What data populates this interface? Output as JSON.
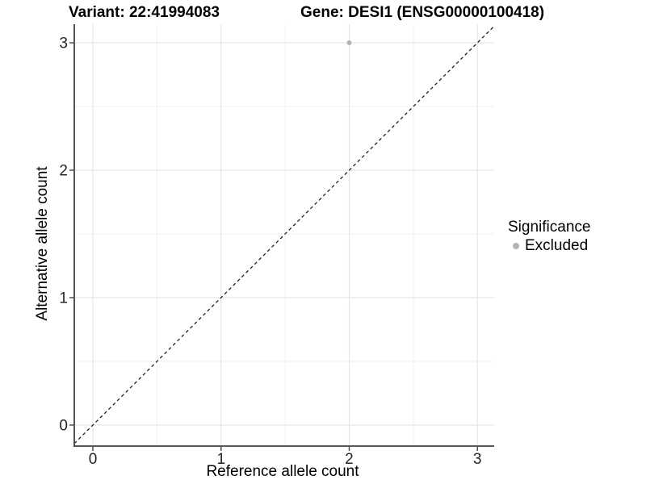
{
  "chart_data": {
    "type": "scatter",
    "title_left": "Variant: 22:41994083",
    "title_right": "Gene: DESI1 (ENSG00000100418)",
    "xlabel": "Reference allele count",
    "ylabel": "Alternative allele count",
    "xlim": [
      -0.145,
      3.131
    ],
    "ylim": [
      -0.165,
      3.146
    ],
    "x_ticks": [
      {
        "value": 0,
        "label": "0"
      },
      {
        "value": 1,
        "label": "1"
      },
      {
        "value": 2,
        "label": "2"
      },
      {
        "value": 3,
        "label": "3"
      }
    ],
    "y_ticks": [
      {
        "value": 0,
        "label": "0"
      },
      {
        "value": 1,
        "label": "1"
      },
      {
        "value": 2,
        "label": "2"
      },
      {
        "value": 3,
        "label": "3"
      }
    ],
    "x_minor": [
      0.5,
      1.5,
      2.5
    ],
    "y_minor": [
      0.5,
      1.5,
      2.5
    ],
    "grid": {
      "major_color": "#e4e4e4",
      "minor_color": "#f1f1f1"
    },
    "identity_line": {
      "equation": "y = x",
      "style": "dashed",
      "color": "#111111"
    },
    "series": [
      {
        "name": "Excluded",
        "color": "#b3b3b3",
        "points": [
          [
            2,
            3
          ]
        ]
      }
    ],
    "legend": {
      "title": "Significance",
      "position": "right",
      "entries": [
        {
          "label": "Excluded",
          "color": "#b3b3b3",
          "marker": "circle"
        }
      ]
    }
  },
  "colors": {
    "background": "#ffffff",
    "axis_line": "#404040",
    "tick_mark": "#4d4d4d",
    "tick_label": "#262626",
    "title_text": "#000000"
  }
}
